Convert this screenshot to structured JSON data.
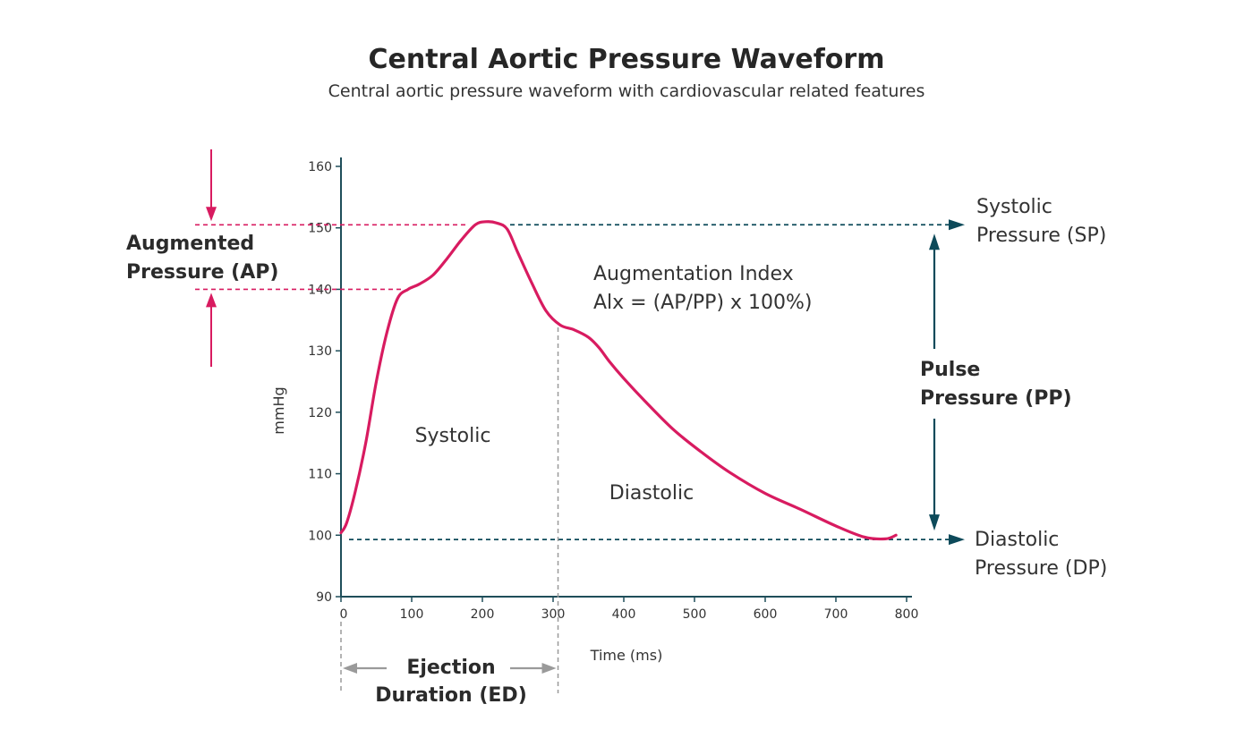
{
  "colors": {
    "curve": "#d81b60",
    "dashed_dark": "#0d4a5a",
    "axis": "#1f4e5a",
    "grey": "#9a9a9a",
    "ap_marker": "#d81b60"
  },
  "chart_data": {
    "type": "line",
    "title": "Central Aortic Pressure Waveform",
    "subtitle": "Central aortic pressure waveform with cardiovascular related features",
    "xlabel": "Time (ms)",
    "ylabel": "mmHg",
    "xlim": [
      0,
      800
    ],
    "ylim": [
      90,
      160
    ],
    "xticks": [
      "0",
      "100",
      "200",
      "300",
      "400",
      "500",
      "600",
      "700",
      "800"
    ],
    "yticks": [
      "90",
      "100",
      "110",
      "120",
      "130",
      "140",
      "150",
      "160"
    ],
    "series": [
      {
        "x": [
          0,
          8,
          20,
          35,
          50,
          65,
          80,
          95,
          110,
          130,
          150,
          170,
          190,
          205,
          220,
          235,
          250,
          270,
          290,
          310,
          330,
          350,
          365,
          380,
          400,
          430,
          470,
          510,
          550,
          600,
          650,
          700,
          740,
          770,
          785
        ],
        "y": [
          100.4,
          102,
          107,
          115,
          125,
          133,
          138.5,
          140,
          140.8,
          142.3,
          145,
          148,
          150.5,
          151,
          150.8,
          149.8,
          146,
          141,
          136.5,
          134.2,
          133.4,
          132.2,
          130.5,
          128.2,
          125.5,
          121.8,
          117.2,
          113.5,
          110.2,
          106.8,
          104.2,
          101.5,
          99.7,
          99.4,
          100
        ]
      }
    ],
    "reference_lines": {
      "systolic_pressure": 150.5,
      "diastolic_pressure": 99.3,
      "augmentation_start": 140,
      "ejection_end_time": 307
    },
    "regions": {
      "systolic": "Systolic",
      "diastolic": "Diastolic"
    },
    "annotations": {
      "sp_line1": "Systolic",
      "sp_line2": "Pressure (SP)",
      "dp_line1": "Diastolic",
      "dp_line2": "Pressure (DP)",
      "pp_line1": "Pulse",
      "pp_line2": "Pressure (PP)",
      "ap_line1": "Augmented",
      "ap_line2": "Pressure (AP)",
      "ai_line1": "Augmentation Index",
      "ai_line2": "Alx = (AP/PP) x 100%)",
      "ed_line1": "Ejection",
      "ed_line2": "Duration (ED)"
    }
  }
}
